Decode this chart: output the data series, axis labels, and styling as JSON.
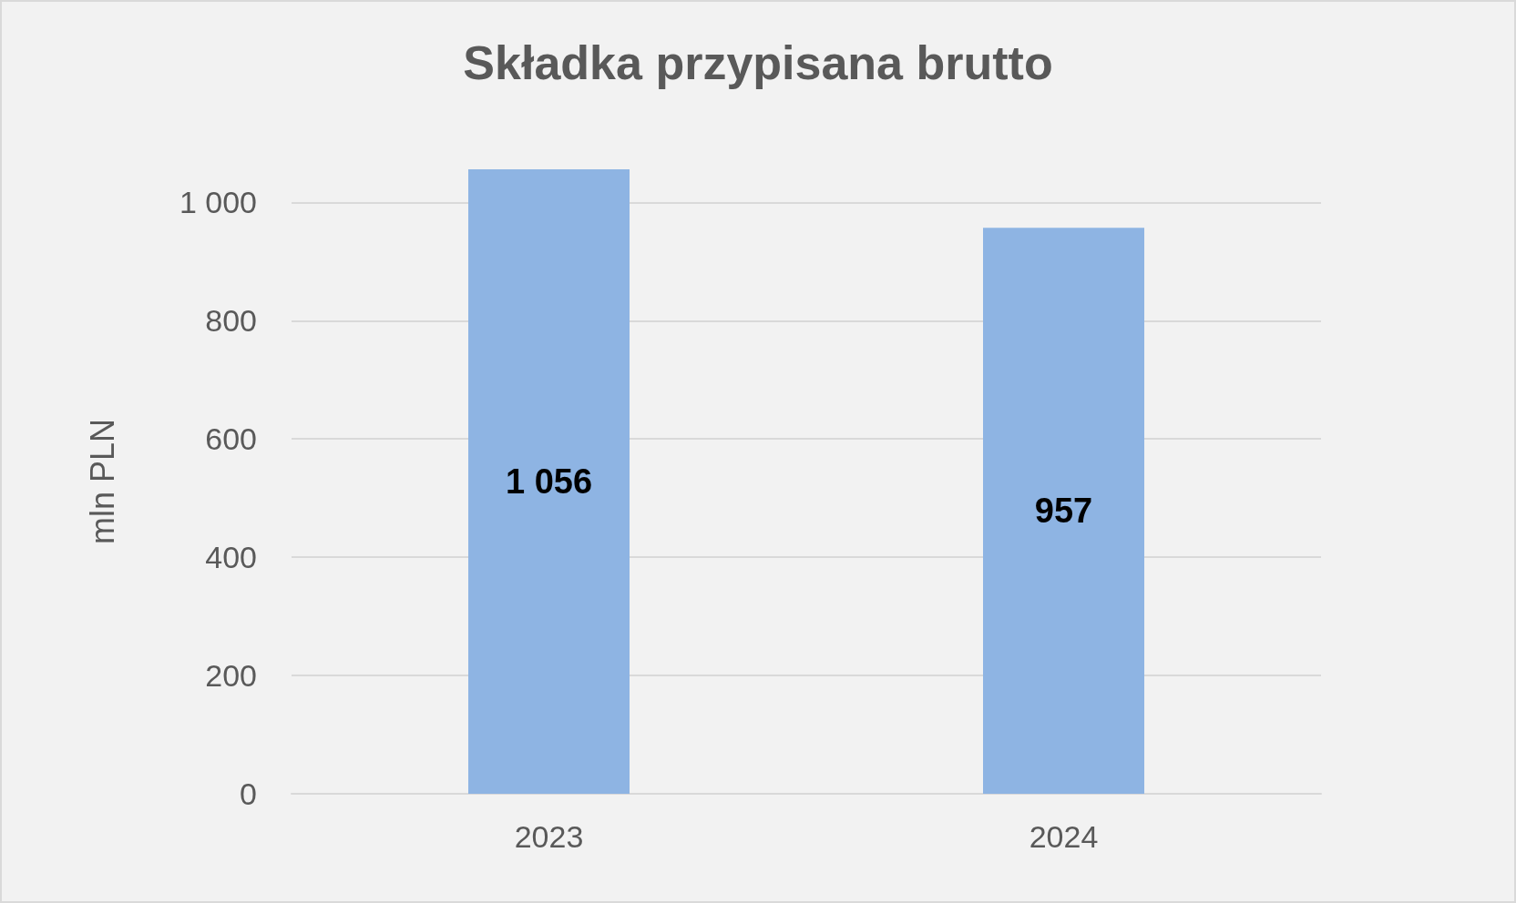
{
  "chart_data": {
    "type": "bar",
    "title": "Składka przypisana brutto",
    "ylabel": "mln PLN",
    "categories": [
      "2023",
      "2024"
    ],
    "values": [
      1056,
      957
    ],
    "value_labels": [
      "1 056",
      "957"
    ],
    "color": "#8eb4e3",
    "ylim": [
      0,
      1056
    ],
    "yticks": [
      0,
      200,
      400,
      600,
      800,
      {
        "value": 1000,
        "label": "1 000"
      }
    ],
    "grid": "y"
  }
}
